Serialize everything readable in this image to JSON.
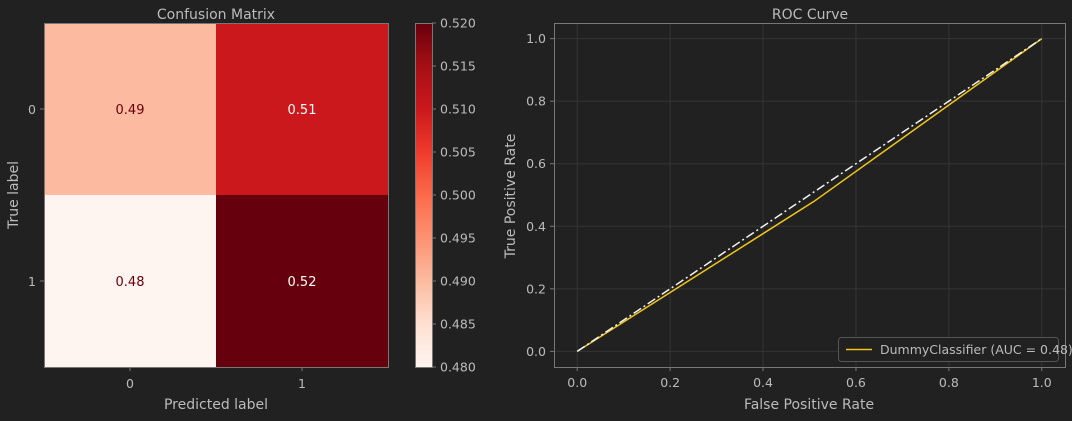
{
  "chart_data": [
    {
      "type": "heatmap",
      "title": "Confusion Matrix",
      "xlabel": "Predicted label",
      "ylabel": "True label",
      "x_tick_labels": [
        "0",
        "1"
      ],
      "y_tick_labels": [
        "0",
        "1"
      ],
      "values": [
        [
          0.49,
          0.51
        ],
        [
          0.48,
          0.52
        ]
      ],
      "value_labels": [
        [
          "0.49",
          "0.51"
        ],
        [
          "0.48",
          "0.52"
        ]
      ],
      "colormap": "Reds",
      "colorbar": {
        "range": [
          0.48,
          0.52
        ],
        "tick_values": [
          0.48,
          0.485,
          0.49,
          0.495,
          0.5,
          0.505,
          0.51,
          0.515,
          0.52
        ],
        "tick_labels": [
          "0.480",
          "0.485",
          "0.490",
          "0.495",
          "0.500",
          "0.505",
          "0.510",
          "0.515",
          "0.520"
        ]
      }
    },
    {
      "type": "line",
      "title": "ROC Curve",
      "xlabel": "False Positive Rate",
      "ylabel": "True Positive Rate",
      "xlim": [
        0,
        1
      ],
      "ylim": [
        0,
        1
      ],
      "x_tick_values": [
        0.0,
        0.2,
        0.4,
        0.6,
        0.8,
        1.0
      ],
      "x_tick_labels": [
        "0.0",
        "0.2",
        "0.4",
        "0.6",
        "0.8",
        "1.0"
      ],
      "y_tick_values": [
        0.0,
        0.2,
        0.4,
        0.6,
        0.8,
        1.0
      ],
      "y_tick_labels": [
        "0.0",
        "0.2",
        "0.4",
        "0.6",
        "0.8",
        "1.0"
      ],
      "grid": true,
      "legend_position": "lower-right",
      "series": [
        {
          "name": "DummyClassifier (AUC = 0.48)",
          "color": "#f0c419",
          "style": "solid",
          "x": [
            0.0,
            0.51,
            1.0
          ],
          "y": [
            0.0,
            0.48,
            1.0
          ]
        },
        {
          "color": "#f2f2f2",
          "style": "dashdot",
          "x": [
            0.0,
            1.0
          ],
          "y": [
            0.0,
            1.0
          ]
        }
      ]
    }
  ],
  "colors": {
    "background": "#212121",
    "axes_edge": "#777777",
    "grid": "#343434",
    "text": "#bbbbbb"
  }
}
